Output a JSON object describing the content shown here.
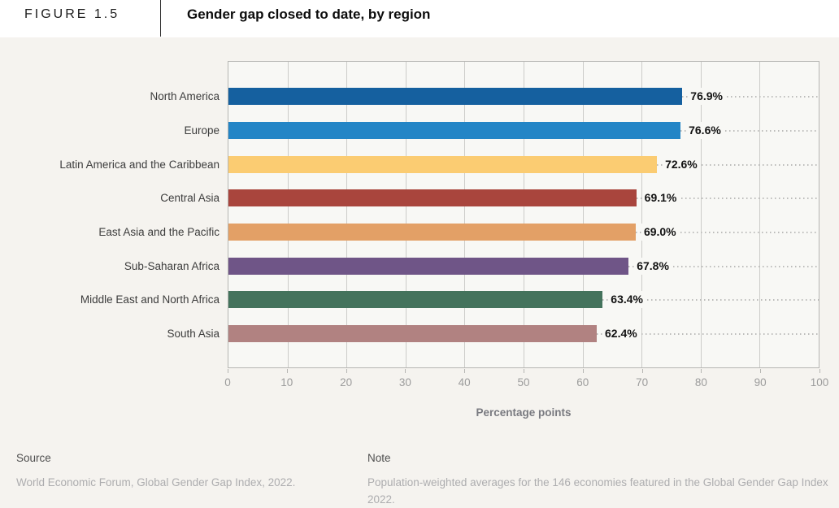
{
  "header": {
    "figure_label": "FIGURE 1.5",
    "title": "Gender gap closed to date, by region"
  },
  "chart_data": {
    "type": "bar",
    "orientation": "horizontal",
    "title": "Gender gap closed to date, by region",
    "xlabel": "Percentage points",
    "xlim": [
      0,
      100
    ],
    "x_ticks": [
      0,
      10,
      20,
      30,
      40,
      50,
      60,
      70,
      80,
      90,
      100
    ],
    "grid": true,
    "categories": [
      "North America",
      "Europe",
      "Latin America and the Caribbean",
      "Central Asia",
      "East Asia and the Pacific",
      "Sub-Saharan Africa",
      "Middle East and North Africa",
      "South Asia"
    ],
    "values": [
      76.9,
      76.6,
      72.6,
      69.1,
      69.0,
      67.8,
      63.4,
      62.4
    ],
    "value_labels": [
      "76.9%",
      "76.6%",
      "72.6%",
      "69.1%",
      "69.0%",
      "67.8%",
      "63.4%",
      "62.4%"
    ],
    "colors": [
      "#15609f",
      "#2385c6",
      "#fbcc72",
      "#a9453d",
      "#e3a066",
      "#6f5587",
      "#44735c",
      "#b18281"
    ]
  },
  "footer": {
    "source_heading": "Source",
    "source_text": "World Economic Forum, Global Gender Gap Index, 2022.",
    "note_heading": "Note",
    "note_text": "Population-weighted averages for the 146 economies featured in the Global Gender Gap Index 2022."
  }
}
